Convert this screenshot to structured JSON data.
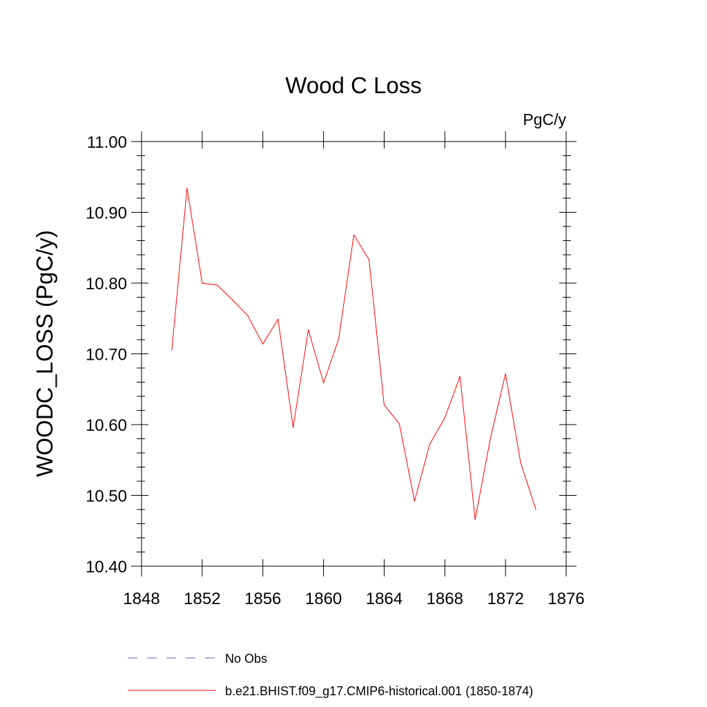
{
  "chart_data": {
    "type": "line",
    "title": "Wood C Loss",
    "units_label": "PgC/y",
    "ylabel": "WOODC_LOSS  (PgC/y)",
    "xlabel": "",
    "xlim": [
      1848,
      1876
    ],
    "ylim": [
      10.4,
      11.0
    ],
    "x_ticks": [
      "1848",
      "1852",
      "1856",
      "1860",
      "1864",
      "1868",
      "1872",
      "1876"
    ],
    "y_ticks": [
      "10.40",
      "10.50",
      "10.60",
      "10.70",
      "10.80",
      "10.90",
      "11.00"
    ],
    "grid": false,
    "series": [
      {
        "name": "b.e21.BHIST.f09_g17.CMIP6-historical.001 (1850-1874)",
        "color": "#ff0000",
        "dash": "solid",
        "x": [
          1850,
          1851,
          1852,
          1853,
          1854,
          1855,
          1856,
          1857,
          1858,
          1859,
          1860,
          1861,
          1862,
          1863,
          1864,
          1865,
          1866,
          1867,
          1868,
          1869,
          1870,
          1871,
          1872,
          1873,
          1874
        ],
        "values": [
          10.706,
          10.934,
          10.8,
          10.797,
          10.776,
          10.754,
          10.714,
          10.749,
          10.596,
          10.734,
          10.659,
          10.721,
          10.868,
          10.833,
          10.628,
          10.601,
          10.492,
          10.572,
          10.61,
          10.668,
          10.466,
          10.58,
          10.672,
          10.546,
          10.48
        ]
      }
    ],
    "legend": [
      {
        "label": "No Obs",
        "color": "#6666cc",
        "dash": "dashed"
      },
      {
        "label": "b.e21.BHIST.f09_g17.CMIP6-historical.001 (1850-1874)",
        "color": "#ff0000",
        "dash": "solid"
      }
    ],
    "legend_position": "bottom"
  }
}
